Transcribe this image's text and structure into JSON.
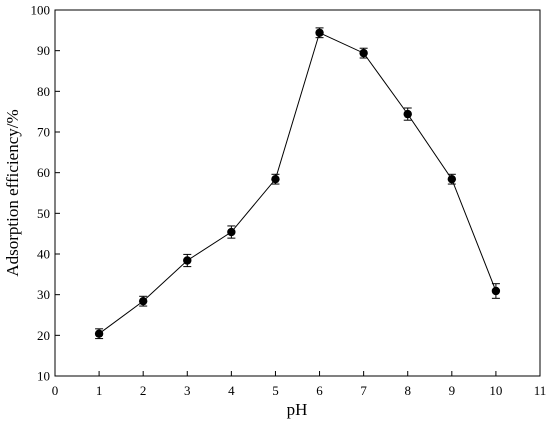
{
  "chart_data": {
    "type": "line",
    "title": "",
    "xlabel": "pH",
    "ylabel": "Adsorption efficiency/%",
    "xlim": [
      0,
      11
    ],
    "ylim": [
      10,
      100
    ],
    "xticks": [
      "0",
      "1",
      "2",
      "3",
      "4",
      "5",
      "6",
      "7",
      "8",
      "9",
      "10",
      "11"
    ],
    "yticks": [
      "10",
      "20",
      "30",
      "40",
      "50",
      "60",
      "70",
      "80",
      "90",
      "100"
    ],
    "grid": false,
    "legend": "none",
    "series": [
      {
        "x": [
          1,
          2,
          3,
          4,
          5,
          6,
          7,
          8,
          9,
          10
        ],
        "y": [
          20.4,
          28.4,
          38.4,
          45.4,
          58.4,
          94.4,
          89.4,
          74.4,
          58.4,
          30.9
        ],
        "error": [
          1.2,
          1.2,
          1.5,
          1.5,
          1.2,
          1.2,
          1.2,
          1.5,
          1.2,
          1.8
        ],
        "marker": "circle",
        "color": "#000000"
      }
    ]
  }
}
